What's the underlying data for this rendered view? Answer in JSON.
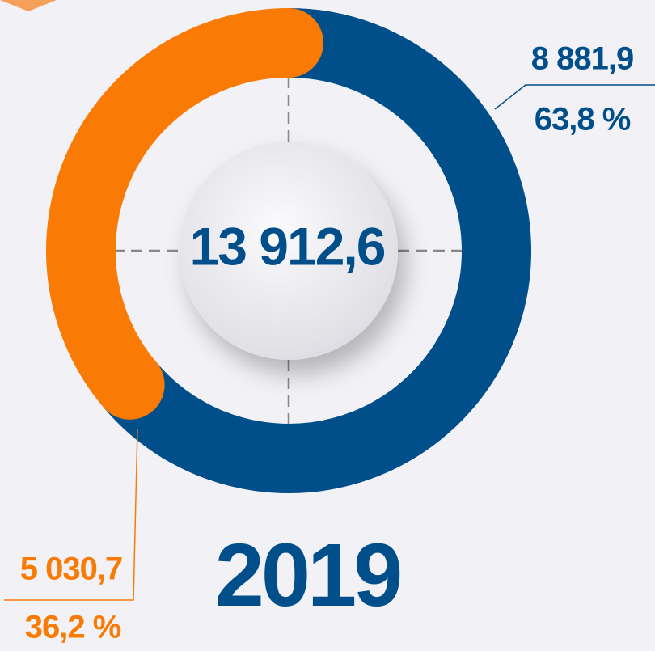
{
  "chart_data": {
    "type": "donut",
    "title": "2019",
    "center_label": "13 912,6",
    "values": [
      8881.9,
      5030.7
    ],
    "value_labels": [
      "8 881,9",
      "5 030,7"
    ],
    "percents": [
      63.8,
      36.2
    ],
    "percent_labels": [
      "63,8 %",
      "36,2 %"
    ],
    "colors": [
      "#004f8b",
      "#f97b06"
    ]
  }
}
